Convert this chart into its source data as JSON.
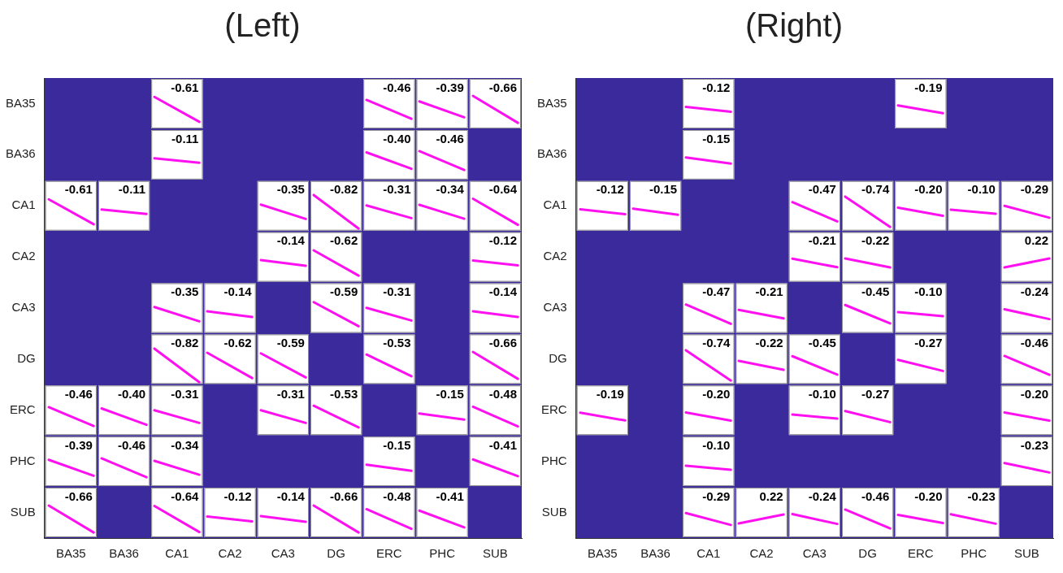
{
  "chart_data": [
    {
      "type": "heatmap",
      "title": "(Left)",
      "data_labels": true,
      "categories": [
        "BA35",
        "BA36",
        "CA1",
        "CA2",
        "CA3",
        "DG",
        "ERC",
        "PHC",
        "SUB"
      ],
      "y_categories": [
        "BA35",
        "BA36",
        "CA1",
        "CA2",
        "CA3",
        "DG",
        "ERC",
        "PHC",
        "SUB"
      ],
      "cells": [
        [
          null,
          null,
          -0.61,
          null,
          null,
          null,
          -0.46,
          -0.39,
          -0.66
        ],
        [
          null,
          null,
          -0.11,
          null,
          null,
          null,
          -0.4,
          -0.46,
          null
        ],
        [
          -0.61,
          -0.11,
          null,
          null,
          -0.35,
          -0.82,
          -0.31,
          -0.34,
          -0.64
        ],
        [
          null,
          null,
          null,
          null,
          -0.14,
          -0.62,
          null,
          null,
          -0.12
        ],
        [
          null,
          null,
          -0.35,
          -0.14,
          null,
          -0.59,
          -0.31,
          null,
          -0.14
        ],
        [
          null,
          null,
          -0.82,
          -0.62,
          -0.59,
          null,
          -0.53,
          null,
          -0.66
        ],
        [
          -0.46,
          -0.4,
          -0.31,
          null,
          -0.31,
          -0.53,
          null,
          -0.15,
          -0.48
        ],
        [
          -0.39,
          -0.46,
          -0.34,
          null,
          null,
          null,
          -0.15,
          null,
          -0.41
        ],
        [
          -0.66,
          null,
          -0.64,
          -0.12,
          -0.14,
          -0.66,
          -0.48,
          -0.41,
          null
        ]
      ],
      "cell_labels": [
        [
          null,
          null,
          "-0.61",
          null,
          null,
          null,
          "-0.46",
          "-0.39",
          "-0.66"
        ],
        [
          null,
          null,
          "-0.11",
          null,
          null,
          null,
          "-0.40",
          "-0.46",
          null
        ],
        [
          "-0.61",
          "-0.11",
          null,
          null,
          "-0.35",
          "-0.82",
          "-0.31",
          "-0.34",
          "-0.64"
        ],
        [
          null,
          null,
          null,
          null,
          "-0.14",
          "-0.62",
          null,
          null,
          "-0.12"
        ],
        [
          null,
          null,
          "-0.35",
          "-0.14",
          null,
          "-0.59",
          "-0.31",
          null,
          "-0.14"
        ],
        [
          null,
          null,
          "-0.82",
          "-0.62",
          "-0.59",
          null,
          "-0.53",
          null,
          "-0.66"
        ],
        [
          "-0.46",
          "-0.40",
          "-0.31",
          null,
          "-0.31",
          "-0.53",
          null,
          "-0.15",
          "-0.48"
        ],
        [
          "-0.39",
          "-0.46",
          "-0.34",
          null,
          null,
          null,
          "-0.15",
          null,
          "-0.41"
        ],
        [
          "-0.66",
          null,
          "-0.64",
          "-0.12",
          "-0.14",
          "-0.66",
          "-0.48",
          "-0.41",
          null
        ]
      ]
    },
    {
      "type": "heatmap",
      "title": "(Right)",
      "data_labels": true,
      "categories": [
        "BA35",
        "BA36",
        "CA1",
        "CA2",
        "CA3",
        "DG",
        "ERC",
        "PHC",
        "SUB"
      ],
      "y_categories": [
        "BA35",
        "BA36",
        "CA1",
        "CA2",
        "CA3",
        "DG",
        "ERC",
        "PHC",
        "SUB"
      ],
      "cells": [
        [
          null,
          null,
          -0.12,
          null,
          null,
          null,
          -0.19,
          null,
          null
        ],
        [
          null,
          null,
          -0.15,
          null,
          null,
          null,
          null,
          null,
          null
        ],
        [
          -0.12,
          -0.15,
          null,
          null,
          -0.47,
          -0.74,
          -0.2,
          -0.1,
          -0.29
        ],
        [
          null,
          null,
          null,
          null,
          -0.21,
          -0.22,
          null,
          null,
          0.22
        ],
        [
          null,
          null,
          -0.47,
          -0.21,
          null,
          -0.45,
          -0.1,
          null,
          -0.24
        ],
        [
          null,
          null,
          -0.74,
          -0.22,
          -0.45,
          null,
          -0.27,
          null,
          -0.46
        ],
        [
          -0.19,
          null,
          -0.2,
          null,
          -0.1,
          -0.27,
          null,
          null,
          -0.2
        ],
        [
          null,
          null,
          -0.1,
          null,
          null,
          null,
          null,
          null,
          -0.23
        ],
        [
          null,
          null,
          -0.29,
          0.22,
          -0.24,
          -0.46,
          -0.2,
          -0.23,
          null
        ]
      ],
      "cell_labels": [
        [
          null,
          null,
          "-0.12",
          null,
          null,
          null,
          "-0.19",
          null,
          null
        ],
        [
          null,
          null,
          "-0.15",
          null,
          null,
          null,
          null,
          null,
          null
        ],
        [
          "-0.12",
          "-0.15",
          null,
          null,
          "-0.47",
          "-0.74",
          "-0.20",
          "-0.10",
          "-0.29"
        ],
        [
          null,
          null,
          null,
          null,
          "-0.21",
          "-0.22",
          null,
          null,
          "0.22"
        ],
        [
          null,
          null,
          "-0.47",
          "-0.21",
          null,
          "-0.45",
          "-0.10",
          null,
          "-0.24"
        ],
        [
          null,
          null,
          "-0.74",
          "-0.22",
          "-0.45",
          null,
          "-0.27",
          null,
          "-0.46"
        ],
        [
          "-0.19",
          null,
          "-0.20",
          null,
          "-0.10",
          "-0.27",
          null,
          null,
          "-0.20"
        ],
        [
          null,
          null,
          "-0.10",
          null,
          null,
          null,
          null,
          null,
          "-0.23"
        ],
        [
          null,
          null,
          "-0.29",
          "0.22",
          "-0.24",
          "-0.46",
          "-0.20",
          "-0.23",
          null
        ]
      ]
    }
  ]
}
